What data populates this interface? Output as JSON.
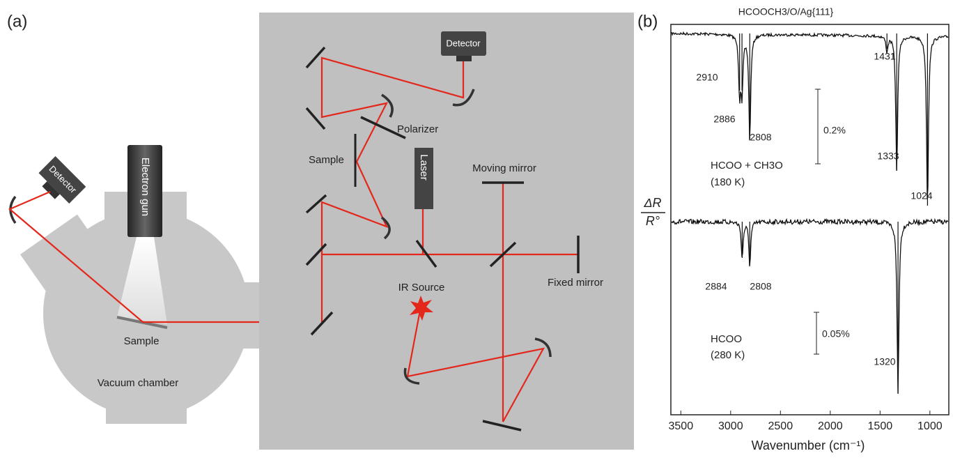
{
  "panel_a": {
    "label": "(a)",
    "chamber": {
      "detector": "Detector",
      "electron_gun": "Electron gun",
      "sample": "Sample",
      "name": "Vacuum chamber"
    },
    "spectrometer": {
      "detector": "Detector",
      "polarizer": "Polarizer",
      "sample": "Sample",
      "laser": "Laser",
      "moving_mirror": "Moving mirror",
      "fixed_mirror": "Fixed mirror",
      "ir_source": "IR Source"
    }
  },
  "panel_b": {
    "label": "(b)",
    "title": "HCOOCH3/O/Ag{111}",
    "y_label_top": "ΔR",
    "y_label_bottom": "R°",
    "x_label": "Wavenumber (cm⁻¹)",
    "xlim": [
      3600,
      810
    ],
    "xticks": [
      3500,
      3000,
      2500,
      2000,
      1500,
      1000
    ],
    "spectra": [
      {
        "name": "HCOO + CH3O",
        "condition": "(180 K)",
        "scale_bar": "0.2%",
        "peaks": [
          2910,
          2886,
          2808,
          1431,
          1333,
          1024
        ]
      },
      {
        "name": "HCOO",
        "condition": "(280 K)",
        "scale_bar": "0.05%",
        "peaks": [
          2884,
          2808,
          1320
        ]
      }
    ]
  }
}
